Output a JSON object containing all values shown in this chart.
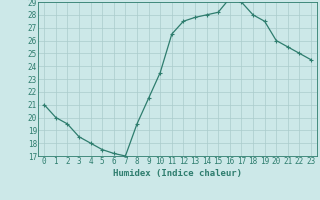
{
  "x": [
    0,
    1,
    2,
    3,
    4,
    5,
    6,
    7,
    8,
    9,
    10,
    11,
    12,
    13,
    14,
    15,
    16,
    17,
    18,
    19,
    20,
    21,
    22,
    23
  ],
  "y": [
    21.0,
    20.0,
    19.5,
    18.5,
    18.0,
    17.5,
    17.2,
    17.0,
    19.5,
    21.5,
    23.5,
    26.5,
    27.5,
    27.8,
    28.0,
    28.2,
    29.3,
    29.0,
    28.0,
    27.5,
    26.0,
    25.5,
    25.0,
    24.5
  ],
  "line_color": "#2e7d6e",
  "marker": "+",
  "marker_size": 3.5,
  "marker_linewidth": 0.8,
  "bg_color": "#cce8e8",
  "grid_color": "#aacccc",
  "xlabel": "Humidex (Indice chaleur)",
  "ylim": [
    17,
    29
  ],
  "xlim": [
    -0.5,
    23.5
  ],
  "yticks": [
    17,
    18,
    19,
    20,
    21,
    22,
    23,
    24,
    25,
    26,
    27,
    28,
    29
  ],
  "xticks": [
    0,
    1,
    2,
    3,
    4,
    5,
    6,
    7,
    8,
    9,
    10,
    11,
    12,
    13,
    14,
    15,
    16,
    17,
    18,
    19,
    20,
    21,
    22,
    23
  ],
  "tick_fontsize": 5.5,
  "xlabel_fontsize": 6.5,
  "line_width": 0.9
}
